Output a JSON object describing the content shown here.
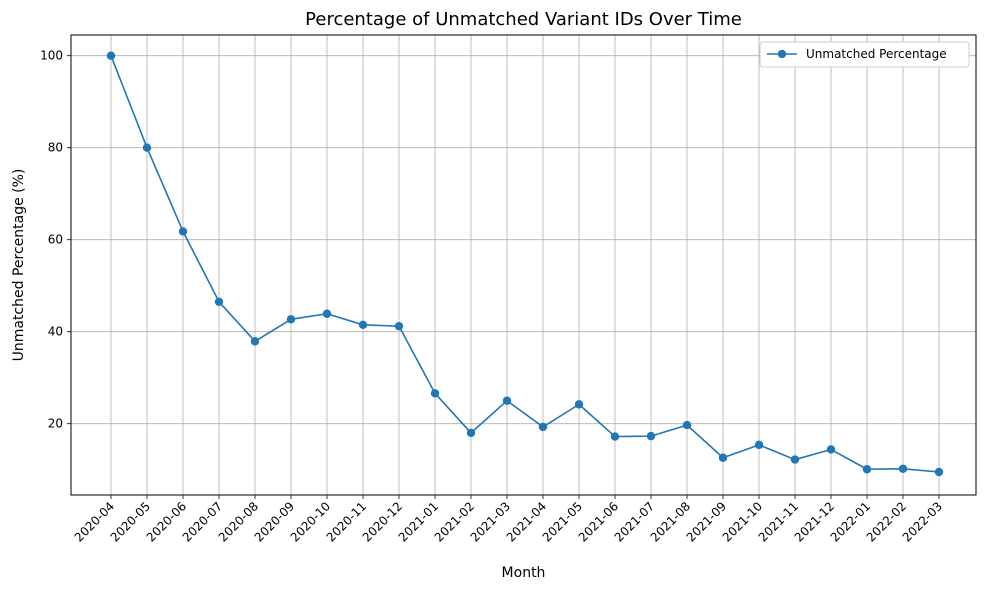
{
  "chart_data": {
    "type": "line",
    "title": "Percentage of Unmatched Variant IDs Over Time",
    "xlabel": "Month",
    "ylabel": "Unmatched Percentage (%)",
    "ylim": [
      4.5,
      104.5
    ],
    "yticks": [
      20,
      40,
      60,
      80,
      100
    ],
    "grid": true,
    "legend_position": "top-right",
    "categories": [
      "2020-04",
      "2020-05",
      "2020-06",
      "2020-07",
      "2020-08",
      "2020-09",
      "2020-10",
      "2020-11",
      "2020-12",
      "2021-01",
      "2021-02",
      "2021-03",
      "2021-04",
      "2021-05",
      "2021-06",
      "2021-07",
      "2021-08",
      "2021-09",
      "2021-10",
      "2021-11",
      "2021-12",
      "2022-01",
      "2022-02",
      "2022-03"
    ],
    "series": [
      {
        "name": "Unmatched Percentage",
        "color": "#1f77b4",
        "marker": "circle",
        "values": [
          100,
          80,
          61.8,
          46.5,
          37.9,
          42.7,
          43.9,
          41.5,
          41.2,
          26.6,
          18.0,
          25.0,
          19.3,
          24.2,
          17.2,
          17.3,
          19.7,
          12.6,
          15.4,
          12.2,
          14.4,
          10.1,
          10.2,
          9.5
        ]
      }
    ]
  }
}
